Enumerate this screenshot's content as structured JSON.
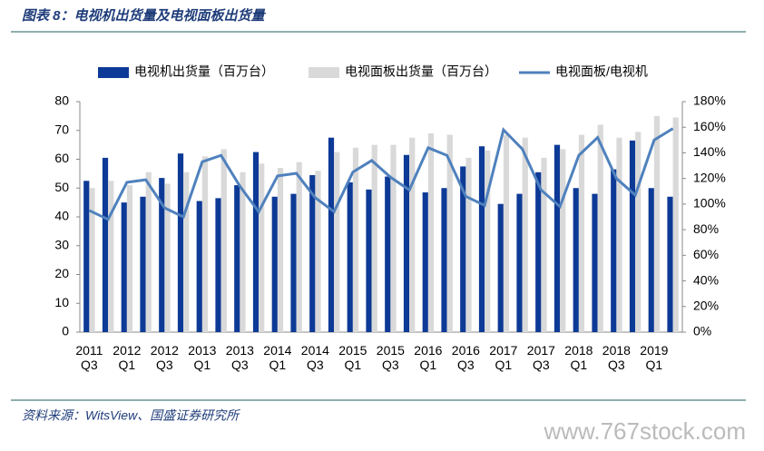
{
  "chart_data": {
    "type": "bar",
    "title": "图表 8：电视机出货量及电视面板出货量",
    "source": "资料来源：WitsView、国盛证券研究所",
    "watermark": "www.767stock.com",
    "categories": [
      "2011 Q3",
      null,
      "2012 Q1",
      null,
      "2012 Q3",
      null,
      "2013 Q1",
      null,
      "2013 Q3",
      null,
      "2014 Q1",
      null,
      "2014 Q3",
      null,
      "2015 Q1",
      null,
      "2015 Q3",
      null,
      "2016 Q1",
      null,
      "2016 Q3",
      null,
      "2017 Q1",
      null,
      "2017 Q3",
      null,
      "2018 Q1",
      null,
      "2018 Q3",
      null,
      "2019 Q1",
      null
    ],
    "series": [
      {
        "name": "电视机出货量（百万台）",
        "color": "#0d3a96",
        "values": [
          52.5,
          60.5,
          45,
          47,
          53.5,
          62,
          45.5,
          46.5,
          51,
          62.5,
          47,
          48,
          54.5,
          67.5,
          52,
          49.5,
          54,
          61.5,
          48.5,
          50,
          57.5,
          64.5,
          44.5,
          48,
          55.5,
          65,
          50,
          48,
          56.5,
          66.5,
          50,
          47
        ]
      },
      {
        "name": "电视面板出货量（百万台）",
        "color": "#d9d9d9",
        "values": [
          50,
          52.5,
          51,
          55.5,
          51.5,
          55.5,
          61,
          63.5,
          55.5,
          58.5,
          57,
          59,
          56,
          62.5,
          64,
          65,
          65,
          67.5,
          69,
          68.5,
          60.5,
          63,
          68.5,
          67.5,
          60.5,
          63.5,
          68.5,
          72,
          67.5,
          69.5,
          75,
          74.5
        ]
      },
      {
        "name": "电视面板/电视机",
        "color": "#4f81bd",
        "type": "line",
        "axis": "y2",
        "values": [
          95,
          88,
          117,
          119,
          97,
          90,
          133,
          138,
          114,
          94,
          122,
          124,
          105,
          94,
          125,
          134,
          121,
          111,
          144,
          138,
          106,
          99,
          158,
          143,
          111,
          98,
          138,
          152,
          120,
          107,
          150,
          159
        ]
      }
    ],
    "ylim": [
      0,
      80
    ],
    "yticks": [
      0,
      10,
      20,
      30,
      40,
      50,
      60,
      70,
      80
    ],
    "y2lim": [
      0,
      180
    ],
    "y2ticks": [
      {
        "value": 0,
        "label": "0%"
      },
      {
        "value": 20,
        "label": "20%"
      },
      {
        "value": 40,
        "label": "40%"
      },
      {
        "value": 60,
        "label": "60%"
      },
      {
        "value": 80,
        "label": "80%"
      },
      {
        "value": 100,
        "label": "100%"
      },
      {
        "value": 120,
        "label": "120%"
      },
      {
        "value": 140,
        "label": "140%"
      },
      {
        "value": 160,
        "label": "160%"
      },
      {
        "value": 180,
        "label": "180%"
      }
    ]
  }
}
